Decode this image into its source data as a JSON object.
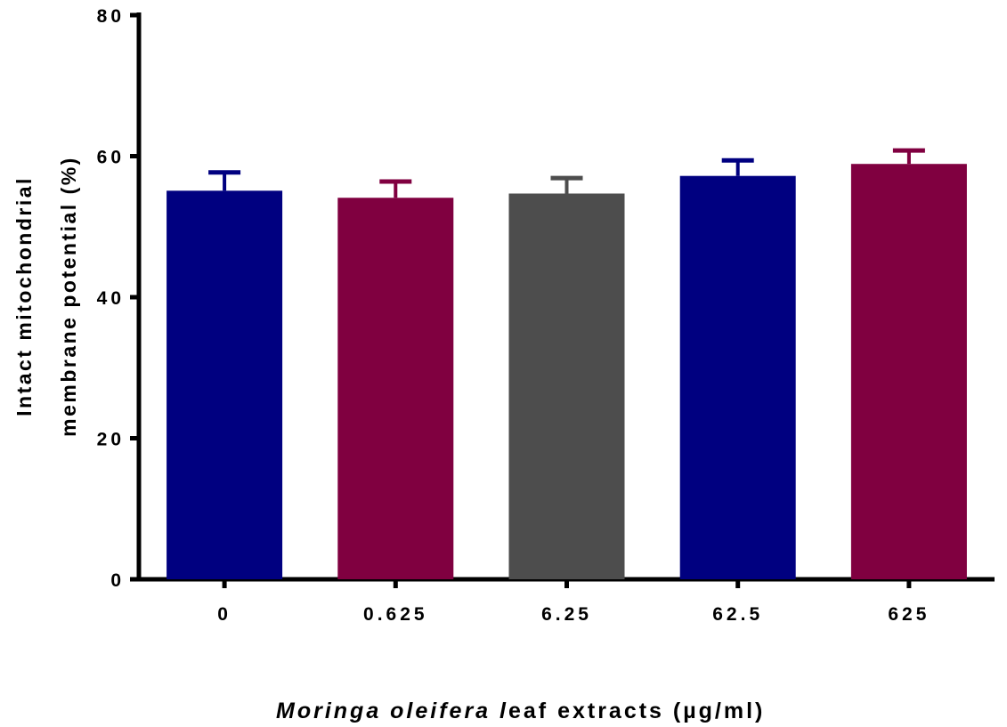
{
  "chart_data": {
    "type": "bar",
    "categories": [
      "0",
      "0.625",
      "6.25",
      "62.5",
      "625"
    ],
    "values": [
      55.1,
      54.1,
      54.7,
      57.2,
      58.9
    ],
    "errors": [
      2.6,
      2.3,
      2.2,
      2.2,
      1.9
    ],
    "bar_colors": [
      "#000080",
      "#800040",
      "#4d4d4d",
      "#000080",
      "#800040"
    ],
    "ylim": [
      0,
      80
    ],
    "yticks": [
      "0",
      "20",
      "40",
      "60",
      "80"
    ],
    "ylabel_line1": "Intact mitochondrial",
    "ylabel_line2": "membrane potential (%)",
    "xlabel_italic_1": "Moringa oleifera l",
    "xlabel_rest": "eaf extracts (",
    "xlabel_unit": "g/ml)",
    "xlabel_symbol": "µ",
    "grid": false
  }
}
